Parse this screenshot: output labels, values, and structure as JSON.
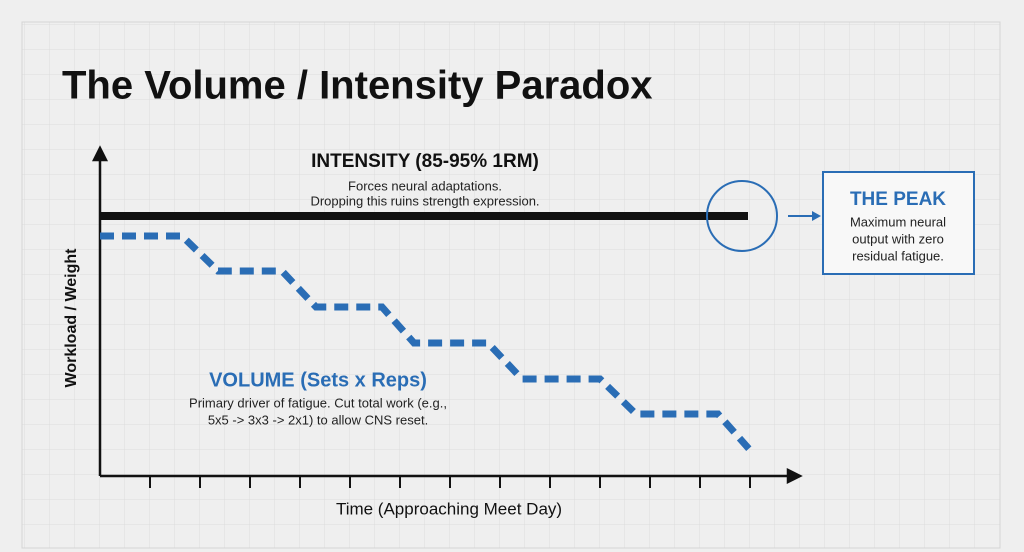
{
  "title": "The Volume / Intensity Paradox",
  "intensity": {
    "heading": "INTENSITY (85-95% 1RM)",
    "lines": [
      "Forces neural adaptations.",
      "Dropping this ruins strength expression."
    ]
  },
  "peak": {
    "heading": "THE PEAK",
    "lines": [
      "Maximum neural",
      "output with zero",
      "residual fatigue."
    ]
  },
  "volume": {
    "heading": "VOLUME (Sets x Reps)",
    "lines": [
      "Primary driver of fatigue. Cut total work (e.g.,",
      "5x5 -> 3x3 -> 2x1) to allow CNS reset."
    ]
  },
  "axes": {
    "y_label": "Workload / Weight",
    "x_label": "Time (Approaching Meet Day)"
  }
}
